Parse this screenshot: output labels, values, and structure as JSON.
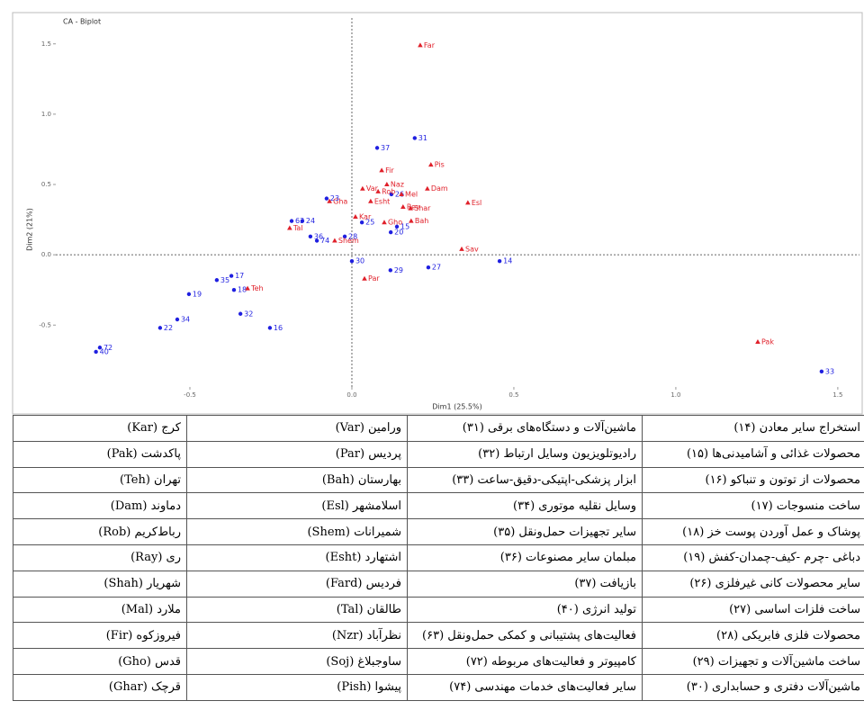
{
  "chart_data": {
    "type": "scatter",
    "title": "CA - Biplot",
    "x_label": "Dim1 (25.5%)",
    "y_label": "Dim2 (21%)",
    "xlim": [
      -0.914,
      1.567
    ],
    "ylim": [
      -0.94,
      1.62
    ],
    "xticks": [
      -0.5,
      {
        "value": 0,
        "label": "0.0"
      },
      0.5,
      {
        "value": 1,
        "label": "1.0"
      },
      1.5
    ],
    "yticks": [
      {
        "value": -0.5,
        "label": "-0.5"
      },
      {
        "value": 0,
        "label": "0.0"
      },
      {
        "value": 0.5,
        "label": "0.5"
      },
      {
        "value": 1,
        "label": "1.0"
      },
      {
        "value": 1.5,
        "label": "1.5"
      }
    ],
    "series": [
      {
        "color": "#1f1fe0",
        "marker": "circle",
        "labels": [
          "31",
          "37",
          "26",
          "28",
          "23",
          "24",
          "63",
          "36",
          "74",
          "25",
          "20",
          "15",
          "30",
          "29",
          "27",
          "14",
          "17",
          "35",
          "18",
          "19",
          "32",
          "16",
          "34",
          "22",
          "72",
          "40",
          "33"
        ],
        "x": [
          0.194,
          0.078,
          0.122,
          -0.022,
          -0.078,
          -0.153,
          -0.186,
          -0.128,
          -0.108,
          0.031,
          0.12,
          0.139,
          0.0,
          0.119,
          0.236,
          0.456,
          -0.372,
          -0.417,
          -0.364,
          -0.503,
          -0.344,
          -0.253,
          -0.539,
          -0.592,
          -0.778,
          -0.79,
          1.45
        ],
        "y": [
          0.83,
          0.76,
          0.43,
          0.13,
          0.4,
          0.24,
          0.24,
          0.13,
          0.1,
          0.23,
          0.16,
          0.2,
          -0.045,
          -0.11,
          -0.09,
          -0.045,
          -0.15,
          -0.18,
          -0.25,
          -0.28,
          -0.42,
          -0.52,
          -0.46,
          -0.52,
          -0.66,
          -0.69,
          -0.83
        ]
      },
      {
        "color": "#e0202a",
        "marker": "triangle",
        "labels": [
          "Far",
          "Pis",
          "Fir",
          "Naz",
          "Dam",
          "Var",
          "Rob",
          "Mel",
          "Esl",
          "Gha",
          "Esht",
          "Rey",
          "Shar",
          "Kar",
          "Gho",
          "Bah",
          "Tal",
          "Shem",
          "Sav",
          "Par",
          "Teh",
          "Pak"
        ],
        "x": [
          0.211,
          0.244,
          0.092,
          0.108,
          0.233,
          0.033,
          0.081,
          0.153,
          0.358,
          -0.069,
          0.058,
          0.158,
          0.181,
          0.011,
          0.1,
          0.183,
          -0.192,
          -0.053,
          0.339,
          0.039,
          -0.322,
          1.253
        ],
        "y": [
          1.49,
          0.64,
          0.6,
          0.5,
          0.47,
          0.47,
          0.45,
          0.43,
          0.37,
          0.38,
          0.38,
          0.34,
          0.33,
          0.27,
          0.23,
          0.24,
          0.19,
          0.1,
          0.04,
          -0.17,
          -0.24,
          -0.62
        ]
      }
    ]
  },
  "table": {
    "rows": [
      [
        "کرج (Kar)",
        "ورامین (Var)",
        "ماشین‌آلات و دستگاه‌های برقی (۳۱)",
        "استخراج سایر معادن (۱۴)"
      ],
      [
        "پاکدشت (Pak)",
        "پردیس (Par)",
        "رادیوتلویزیون وسایل ارتباط (۳۲)",
        "محصولات غذائی و آشامیدنی‌ها (۱۵)"
      ],
      [
        "تهران (Teh)",
        "بهارستان (Bah)",
        "ابزار پزشکی-اپتیکی-دقیق-ساعت (۳۳)",
        "محصولات از توتون و تنباکو (۱۶)"
      ],
      [
        "دماوند (Dam)",
        "اسلامشهر (Esl)",
        "وسایل نقلیه موتوری (۳۴)",
        "ساخت منسوجات (۱۷)"
      ],
      [
        "رباط‌کریم (Rob)",
        "شمیرانات (Shem)",
        "سایر تجهیزات حمل‌ونقل (۳۵)",
        "پوشاک و عمل آوردن پوست خز (۱۸)"
      ],
      [
        "ری (Ray)",
        "اشتهارد (Esht)",
        "مبلمان سایر مصنوعات (۳۶)",
        "دباغی -چرم -کیف-چمدان-کفش (۱۹)"
      ],
      [
        "شهریار (Shah)",
        "فردیس (Fard)",
        "بازیافت (۳۷)",
        "سایر محصولات کانی غیرفلزی (۲۶)"
      ],
      [
        "ملارد (Mal)",
        "طالقان (Tal)",
        "تولید انرژی (۴۰)",
        "ساخت فلزات اساسی (۲۷)"
      ],
      [
        "فیروزکوه (Fir)",
        "نظرآباد (Nzr)",
        "فعالیت‌های پشتیبانی و کمکی حمل‌ونقل (۶۳)",
        "محصولات فلزی فابریکی (۲۸)"
      ],
      [
        "قدس (Gho)",
        "ساوجبلاغ (Soj)",
        "کامپیوتر و فعالیت‌های مربوطه (۷۲)",
        "ساخت ماشین‌آلات و تجهیزات (۲۹)"
      ],
      [
        "قرچک (Ghar)",
        "پیشوا (Pish)",
        "سایر فعالیت‌های خدمات مهندسی (۷۴)",
        "ماشین‌آلات دفتری و حسابداری (۳۰)"
      ]
    ]
  }
}
